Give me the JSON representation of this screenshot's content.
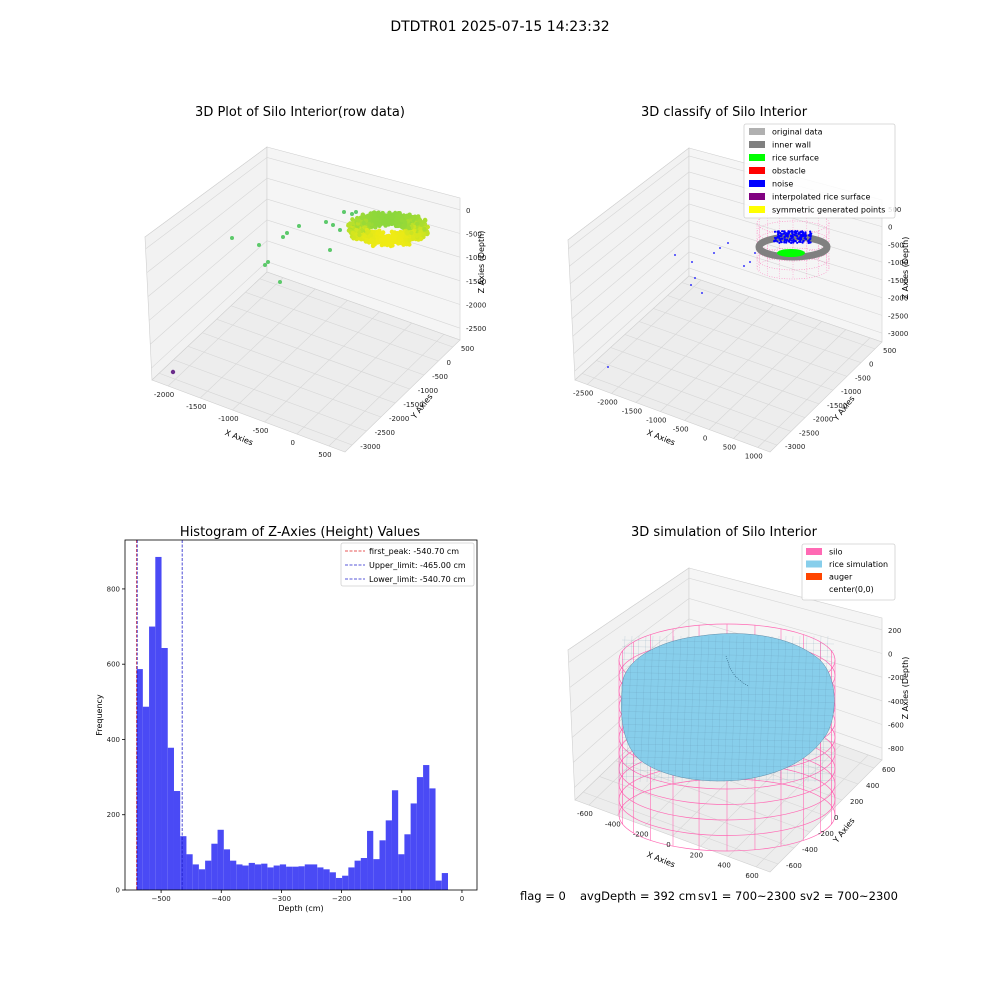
{
  "suptitle": "DTDTR01 2025-07-15 14:23:32",
  "footer": {
    "flag": "flag = 0",
    "avg": "avgDepth = 392 cm",
    "sv1": "sv1 = 700~2300",
    "sv2": "sv2 = 700~2300"
  },
  "colors": {
    "hist_bar": "#4a4af5",
    "peak_line": "#e02020",
    "limit_line": "#2020cc",
    "silo": "#ff69b4",
    "rice": "#87ceeb",
    "auger": "#ff4500",
    "noise": "#0000ff",
    "inner_wall": "#808080",
    "rice_surface": "#00ff00"
  },
  "chart_data": [
    {
      "type": "scatter",
      "subtype": "3d",
      "title": "3D Plot of Silo Interior(row data)",
      "xlabel": "X Axies",
      "ylabel": "Y Axies",
      "zlabel": "Z Axies (Depth)",
      "x_ticks": [
        "-2000",
        "-1500",
        "-1000",
        "-500",
        "0",
        "500"
      ],
      "y_ticks": [
        "500",
        "0",
        "-500",
        "-1000",
        "-1500",
        "-2000",
        "-2500",
        "-3000"
      ],
      "z_ticks": [
        "0",
        "-500",
        "-1000",
        "-1500",
        "-2000",
        "-2500"
      ],
      "xlim": [
        -2200,
        600
      ],
      "ylim": [
        -3100,
        700
      ],
      "zlim": [
        -2700,
        100
      ]
    },
    {
      "type": "scatter",
      "subtype": "3d",
      "title": "3D classify of Silo Interior",
      "xlabel": "X Axies",
      "ylabel": "Y Axies",
      "zlabel": "Z Axies (Depth)",
      "x_ticks": [
        "-2500",
        "-2000",
        "-1500",
        "-1000",
        "-500",
        "0",
        "500",
        "1000"
      ],
      "y_ticks": [
        "500",
        "0",
        "-500",
        "-1000",
        "-1500",
        "-2000",
        "-2500",
        "-3000"
      ],
      "z_ticks": [
        "500",
        "0",
        "-500",
        "-1000",
        "-1500",
        "-2000",
        "-2500",
        "-3000"
      ],
      "legend": [
        {
          "label": "original data",
          "color": "#b0b0b0"
        },
        {
          "label": "inner wall",
          "color": "#808080"
        },
        {
          "label": "rice surface",
          "color": "#00ff00"
        },
        {
          "label": "obstacle",
          "color": "#ff0000"
        },
        {
          "label": "noise",
          "color": "#0000ff"
        },
        {
          "label": "interpolated rice surface",
          "color": "#800080"
        },
        {
          "label": "symmetric generated points",
          "color": "#ffff00"
        }
      ],
      "legend_position": "top-right"
    },
    {
      "type": "bar",
      "subtype": "histogram",
      "title": "Histogram of Z-Axies (Height) Values",
      "xlabel": "Depth (cm)",
      "ylabel": "Frequency",
      "xlim": [
        -560,
        25
      ],
      "ylim": [
        0,
        930
      ],
      "x_ticks": [
        -500,
        -400,
        -300,
        -200,
        -100,
        0
      ],
      "y_ticks": [
        0,
        200,
        400,
        600,
        800
      ],
      "bin_start": -540.7,
      "bin_width": 10.35,
      "values": [
        587,
        487,
        700,
        885,
        643,
        378,
        263,
        143,
        95,
        68,
        55,
        78,
        123,
        160,
        108,
        78,
        68,
        65,
        72,
        68,
        70,
        60,
        65,
        68,
        62,
        62,
        63,
        68,
        68,
        60,
        55,
        47,
        32,
        38,
        60,
        78,
        85,
        157,
        82,
        132,
        185,
        265,
        95,
        148,
        230,
        300,
        332,
        270,
        25,
        45
      ],
      "lines": [
        {
          "label": "first_peak: -540.70 cm",
          "x": -540.7,
          "color": "#e02020"
        },
        {
          "label": "Upper_limit: -465.00 cm",
          "x": -465.0,
          "color": "#2020cc"
        },
        {
          "label": "Lower_limit: -540.70 cm",
          "x": -540.7,
          "color": "#2020cc"
        }
      ],
      "legend_position": "top-right"
    },
    {
      "type": "scatter",
      "subtype": "3d-surface",
      "title": "3D simulation of Silo Interior",
      "xlabel": "X Axies",
      "ylabel": "Y Axies",
      "zlabel": "Z Axies (Depth)",
      "x_ticks": [
        "-600",
        "-400",
        "-200",
        "0",
        "200",
        "400",
        "600"
      ],
      "y_ticks": [
        "600",
        "400",
        "200",
        "0",
        "-200",
        "-400",
        "-600"
      ],
      "z_ticks": [
        "200",
        "0",
        "-200",
        "-400",
        "-600",
        "-800"
      ],
      "legend": [
        {
          "label": "silo",
          "color": "#ff69b4"
        },
        {
          "label": "rice simulation",
          "color": "#87ceeb"
        },
        {
          "label": "auger",
          "color": "#ff4500"
        },
        {
          "label": "center(0,0)",
          "color": "#ffffff"
        }
      ],
      "legend_position": "top-right"
    }
  ]
}
